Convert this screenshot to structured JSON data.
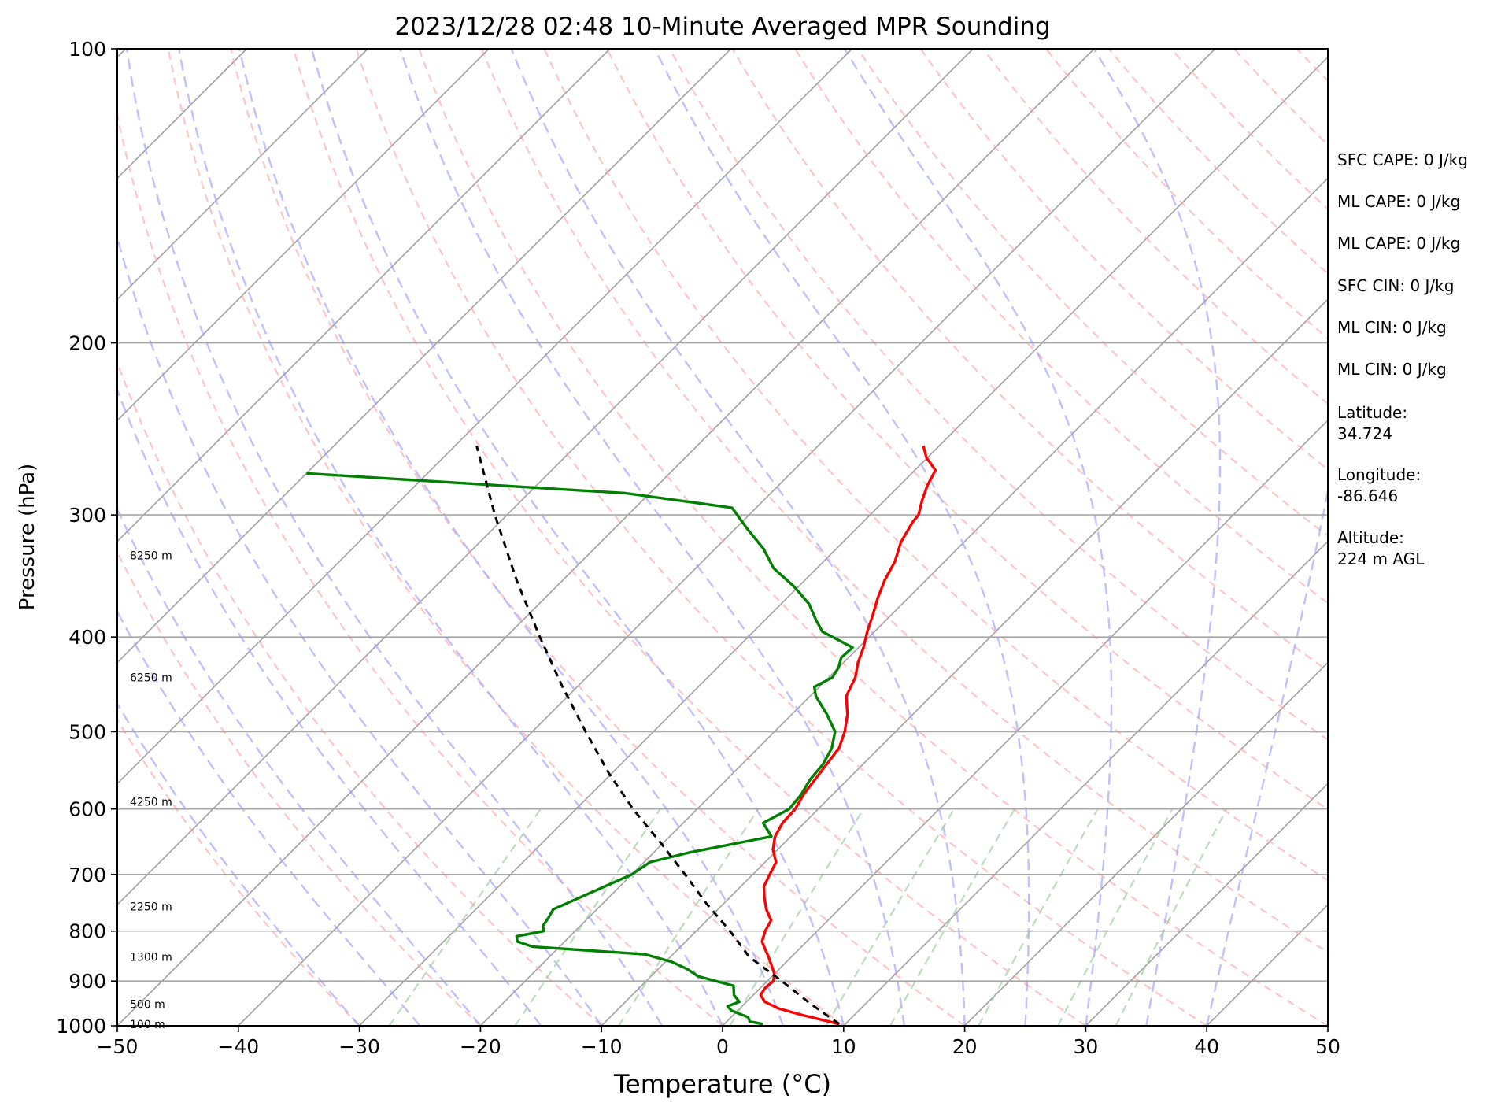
{
  "chart_data": {
    "type": "line",
    "title": "2023/12/28 02:48 10-Minute Averaged MPR Sounding",
    "xlabel": "Temperature (°C)",
    "ylabel": "Pressure (hPa)",
    "xlim": [
      -50,
      50
    ],
    "ylim": [
      1000,
      100
    ],
    "y_scale": "log",
    "x_ticks": [
      -50,
      -40,
      -30,
      -20,
      -10,
      0,
      10,
      20,
      30,
      40,
      50
    ],
    "x_tick_labels": [
      "−50",
      "−40",
      "−30",
      "−20",
      "−10",
      "0",
      "10",
      "20",
      "30",
      "40",
      "50"
    ],
    "y_ticks": [
      1000,
      900,
      800,
      700,
      600,
      500,
      400,
      300,
      200,
      100
    ],
    "y_tick_labels": [
      "1000",
      "900",
      "800",
      "700",
      "600",
      "500",
      "400",
      "300",
      "200",
      "100"
    ],
    "grid": true,
    "skew": true,
    "height_labels": [
      {
        "p": 996,
        "label": "100 m"
      },
      {
        "p": 950,
        "label": "500 m"
      },
      {
        "p": 850,
        "label": "1300 m"
      },
      {
        "p": 755,
        "label": "2250 m"
      },
      {
        "p": 590,
        "label": "4250 m"
      },
      {
        "p": 440,
        "label": "6250 m"
      },
      {
        "p": 330,
        "label": "8250 m"
      }
    ],
    "series": [
      {
        "role": "temperature",
        "color": "#ff0000",
        "p": [
          996,
          975,
          960,
          945,
          930,
          915,
          900,
          885,
          870,
          850,
          835,
          820,
          800,
          780,
          760,
          740,
          720,
          700,
          680,
          660,
          640,
          620,
          600,
          580,
          560,
          540,
          520,
          500,
          480,
          460,
          440,
          425,
          410,
          395,
          380,
          365,
          350,
          335,
          320,
          305,
          300,
          290,
          280,
          270,
          262,
          255
        ],
        "t": [
          9.5,
          5.7,
          3.2,
          1.5,
          0.6,
          0.4,
          0.5,
          0.0,
          -0.8,
          -1.9,
          -2.8,
          -3.7,
          -4.3,
          -4.7,
          -6.0,
          -7.1,
          -8.1,
          -8.6,
          -9.1,
          -10.4,
          -11.3,
          -11.8,
          -11.9,
          -12.4,
          -12.7,
          -13.0,
          -13.3,
          -14.2,
          -15.4,
          -17.0,
          -17.8,
          -18.8,
          -19.6,
          -20.6,
          -21.5,
          -22.5,
          -23.4,
          -24.1,
          -25.2,
          -25.9,
          -26.0,
          -26.9,
          -27.7,
          -28.3,
          -30.1,
          -31.3
        ]
      },
      {
        "role": "dewpoint",
        "color": "#008000",
        "p": [
          996,
          990,
          980,
          965,
          955,
          945,
          930,
          910,
          890,
          875,
          860,
          845,
          830,
          820,
          810,
          800,
          790,
          775,
          760,
          700,
          680,
          665,
          640,
          620,
          600,
          580,
          560,
          540,
          520,
          500,
          480,
          460,
          450,
          440,
          430,
          420,
          410,
          395,
          385,
          370,
          355,
          340,
          325,
          310,
          295,
          285,
          278,
          272
        ],
        "t": [
          3.2,
          1.9,
          1.4,
          -0.5,
          -1.2,
          -0.6,
          -1.6,
          -2.4,
          -6.1,
          -7.6,
          -9.5,
          -12.3,
          -22.2,
          -23.9,
          -24.4,
          -22.6,
          -23.1,
          -23.3,
          -23.6,
          -20.0,
          -19.5,
          -17.1,
          -11.6,
          -13.4,
          -12.4,
          -12.6,
          -13.1,
          -13.3,
          -13.9,
          -15.0,
          -17.1,
          -19.5,
          -20.4,
          -19.7,
          -20.0,
          -20.6,
          -20.5,
          -24.3,
          -25.7,
          -27.7,
          -30.4,
          -33.6,
          -36.0,
          -39.0,
          -42.0,
          -52.0,
          -67.0,
          -80.0
        ]
      },
      {
        "role": "parcel",
        "color": "#000000",
        "p": [
          996,
          950,
          900,
          850,
          800,
          750,
          700,
          650,
          600,
          550,
          500,
          450,
          400,
          350,
          300,
          255
        ],
        "t": [
          9.5,
          5.5,
          1.2,
          -3.5,
          -7.2,
          -11.4,
          -15.6,
          -20.2,
          -25.3,
          -30.4,
          -35.6,
          -41.2,
          -47.2,
          -53.8,
          -61.0,
          -68.2
        ]
      }
    ]
  },
  "stats": [
    "SFC CAPE: 0 J/kg",
    "ML CAPE: 0 J/kg",
    "ML CAPE: 0 J/kg",
    "SFC CIN: 0 J/kg",
    "ML CIN: 0 J/kg",
    "ML CIN: 0 J/kg",
    "Latitude:",
    "34.724",
    "Longitude:",
    "-86.646",
    "Altitude:",
    "224 m AGL"
  ]
}
